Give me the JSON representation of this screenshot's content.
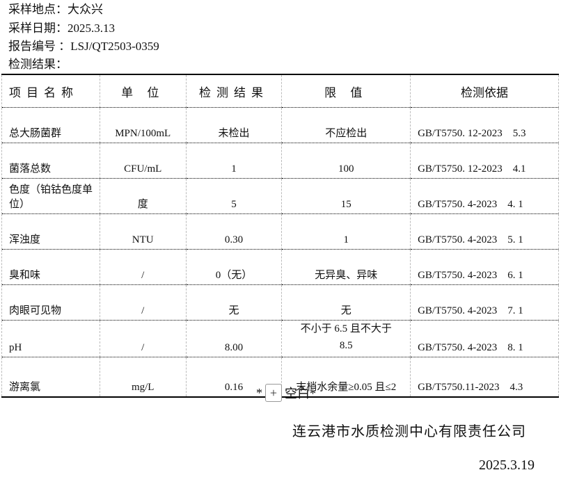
{
  "header": {
    "location": "采样地点：大众兴",
    "date": "采样日期：2025.3.13",
    "report_no": "报告编号 ：LSJ/QT2503-0359",
    "result_label": "检测结果："
  },
  "table": {
    "columns": [
      "项目名称",
      "单 位",
      "检测结果",
      "限 值",
      "检测依据"
    ],
    "rows": [
      {
        "name": "总大肠菌群",
        "unit": "MPN/100mL",
        "result": "未检出",
        "limit": "不应检出",
        "basis": "GB/T5750. 12-2023    5.3"
      },
      {
        "name": "菌落总数",
        "unit": "CFU/mL",
        "result": "1",
        "limit": "100",
        "basis": "GB/T5750. 12-2023    4.1"
      },
      {
        "name": "色度（铂钴色度单位）",
        "unit": "度",
        "result": "5",
        "limit": "15",
        "basis": "GB/T5750. 4-2023    4. 1"
      },
      {
        "name": "浑浊度",
        "unit": "NTU",
        "result": "0.30",
        "limit": "1",
        "basis": "GB/T5750. 4-2023    5. 1"
      },
      {
        "name": "臭和味",
        "unit": "/",
        "result": "0（无）",
        "limit": "无异臭、异味",
        "basis": "GB/T5750. 4-2023    6. 1"
      },
      {
        "name": "肉眼可见物",
        "unit": "/",
        "result": "无",
        "limit": "无",
        "basis": "GB/T5750. 4-2023    7. 1"
      },
      {
        "name": "pH",
        "unit": "/",
        "result": "8.00",
        "limit": "不小于 6.5 且不大于 8.5",
        "basis": "GB/T5750. 4-2023    8. 1"
      },
      {
        "name": "游离氯",
        "unit": "mg/L",
        "result": "0.16",
        "limit": "末梢水余量≥0.05 且≤2",
        "basis": "GB/T5750.11-2023    4.3"
      }
    ]
  },
  "footer": {
    "end_prefix": "*",
    "end_suffix": "空白*",
    "plus_label": "+",
    "company": "连云港市水质检测中心有限责任公司",
    "date": "2025.3.19"
  }
}
